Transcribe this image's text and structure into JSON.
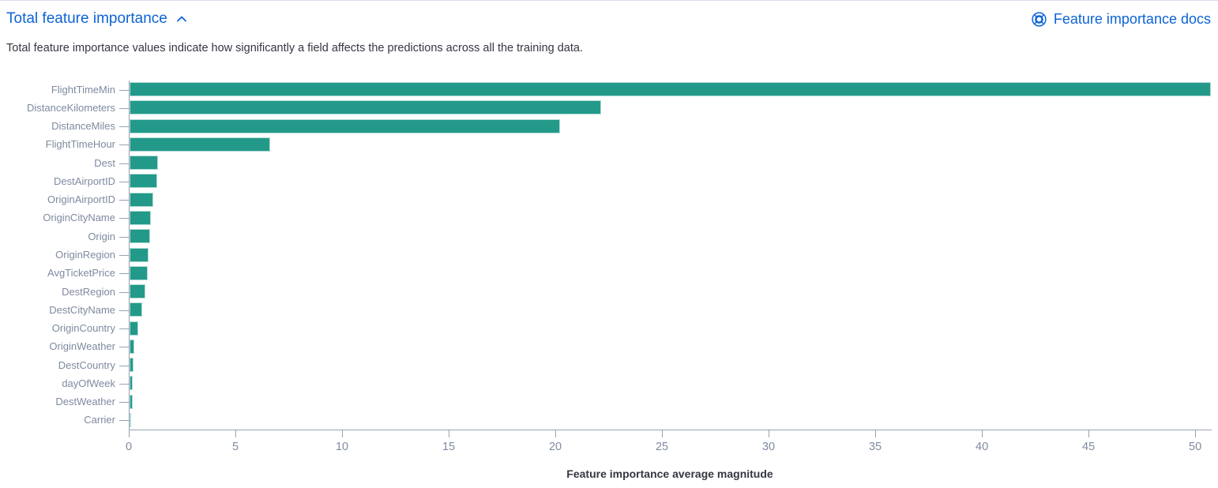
{
  "header": {
    "title": "Total feature importance",
    "docs_link": "Feature importance docs"
  },
  "description": "Total feature importance values indicate how significantly a field affects the predictions across all the training data.",
  "colors": {
    "link_blue": "#0d63d6",
    "bar_fill": "#23998a",
    "bar_border": "#aedcd3",
    "axis_line": "#98a2b3",
    "axis_label": "#7f8aa0",
    "body_text": "#343741"
  },
  "chart_data": {
    "type": "bar",
    "orientation": "horizontal",
    "title": "",
    "xlabel": "Feature importance average magnitude",
    "ylabel": "",
    "xlim": [
      0,
      50.7
    ],
    "x_ticks": [
      0,
      5,
      10,
      15,
      20,
      25,
      30,
      35,
      40,
      45,
      50
    ],
    "grid": false,
    "legend": "none",
    "categories": [
      "FlightTimeMin",
      "DistanceKilometers",
      "DistanceMiles",
      "FlightTimeHour",
      "Dest",
      "DestAirportID",
      "OriginAirportID",
      "OriginCityName",
      "Origin",
      "OriginRegion",
      "AvgTicketPrice",
      "DestRegion",
      "DestCityName",
      "OriginCountry",
      "OriginWeather",
      "DestCountry",
      "dayOfWeek",
      "DestWeather",
      "Carrier"
    ],
    "values": [
      50.7,
      22.1,
      20.2,
      6.6,
      1.35,
      1.3,
      1.1,
      1.0,
      0.95,
      0.9,
      0.85,
      0.75,
      0.6,
      0.42,
      0.21,
      0.19,
      0.16,
      0.13,
      0.06
    ]
  }
}
